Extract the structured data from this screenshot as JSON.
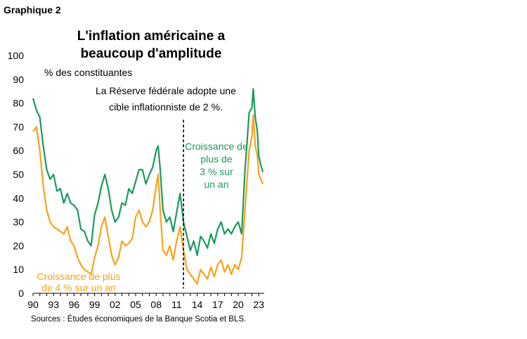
{
  "figure_label": "Graphique 2",
  "sources": "Sources : Études économiques de la Banque Scotia et  BLS.",
  "colors": {
    "green": "#1a9a5c",
    "orange": "#f7a21b",
    "text": "#000000"
  },
  "chart_data": {
    "type": "line",
    "title_lines": [
      "L'inflation américaine a",
      "beaucoup d'amplitude"
    ],
    "ylabel": "% des constituantes",
    "xlabel": "",
    "ylim": [
      0,
      100
    ],
    "xlim": [
      1990,
      2023.8
    ],
    "y_ticks": [
      "0",
      "10",
      "20",
      "30",
      "40",
      "50",
      "60",
      "70",
      "80",
      "90",
      "100"
    ],
    "x_ticks": [
      {
        "year": 1990,
        "label": "90"
      },
      {
        "year": 1993,
        "label": "93"
      },
      {
        "year": 1996,
        "label": "96"
      },
      {
        "year": 1999,
        "label": "99"
      },
      {
        "year": 2002,
        "label": "02"
      },
      {
        "year": 2005,
        "label": "05"
      },
      {
        "year": 2008,
        "label": "08"
      },
      {
        "year": 2011,
        "label": "11"
      },
      {
        "year": 2014,
        "label": "14"
      },
      {
        "year": 2017,
        "label": "17"
      },
      {
        "year": 2020,
        "label": "20"
      },
      {
        "year": 2023,
        "label": "23"
      }
    ],
    "event_line": {
      "x": 2012.0,
      "y_range": [
        2,
        73
      ],
      "annotation_lines": [
        "La Réserve fédérale adopte une",
        "cible inflationniste de 2 %."
      ]
    },
    "series": [
      {
        "label_lines": [
          "Croissance de",
          "plus de",
          "3 % sur",
          "un an"
        ],
        "color": "#1a9a5c",
        "x": [
          1990,
          1990.5,
          1991,
          1991.5,
          1992,
          1992.5,
          1993,
          1993.5,
          1994,
          1994.5,
          1995,
          1995.5,
          1996,
          1996.5,
          1997,
          1997.5,
          1998,
          1998.5,
          1999,
          1999.5,
          2000,
          2000.5,
          2001,
          2001.5,
          2002,
          2002.5,
          2003,
          2003.5,
          2004,
          2004.5,
          2005,
          2005.5,
          2006,
          2006.5,
          2007,
          2007.5,
          2008,
          2008.3,
          2008.6,
          2009,
          2009.5,
          2010,
          2010.5,
          2011,
          2011.5,
          2012,
          2012.5,
          2013,
          2013.5,
          2014,
          2014.5,
          2015,
          2015.5,
          2016,
          2016.5,
          2017,
          2017.5,
          2018,
          2018.5,
          2019,
          2019.5,
          2020,
          2020.5,
          2021,
          2021.3,
          2021.6,
          2022,
          2022.2,
          2022.5,
          2022.8,
          2023,
          2023.3,
          2023.6
        ],
        "values": [
          82,
          77,
          74,
          62,
          52,
          48,
          50,
          43,
          44,
          38,
          42,
          38,
          37,
          35,
          27,
          26,
          22,
          20,
          33,
          38,
          45,
          50,
          44,
          35,
          30,
          32,
          38,
          37,
          44,
          42,
          47,
          52,
          52,
          46,
          50,
          53,
          60,
          62,
          52,
          35,
          30,
          32,
          26,
          34,
          42,
          30,
          24,
          18,
          22,
          16,
          24,
          22,
          19,
          25,
          21,
          27,
          30,
          25,
          27,
          25,
          28,
          30,
          25,
          52,
          64,
          76,
          78,
          86,
          74,
          68,
          58,
          54,
          51
        ]
      },
      {
        "label_lines": [
          "Croissance de plus",
          "de 4 % sur un an"
        ],
        "color": "#f7a21b",
        "x": [
          1990,
          1990.5,
          1991,
          1991.5,
          1992,
          1992.5,
          1993,
          1993.5,
          1994,
          1994.5,
          1995,
          1995.5,
          1996,
          1996.5,
          1997,
          1997.5,
          1998,
          1998.5,
          1999,
          1999.5,
          2000,
          2000.5,
          2001,
          2001.5,
          2002,
          2002.5,
          2003,
          2003.5,
          2004,
          2004.5,
          2005,
          2005.5,
          2006,
          2006.5,
          2007,
          2007.5,
          2008,
          2008.3,
          2008.6,
          2009,
          2009.5,
          2010,
          2010.5,
          2011,
          2011.5,
          2012,
          2012.5,
          2013,
          2013.5,
          2014,
          2014.5,
          2015,
          2015.5,
          2016,
          2016.5,
          2017,
          2017.5,
          2018,
          2018.5,
          2019,
          2019.5,
          2020,
          2020.5,
          2021,
          2021.3,
          2021.6,
          2022,
          2022.2,
          2022.5,
          2022.8,
          2023,
          2023.3,
          2023.6
        ],
        "values": [
          68,
          70,
          60,
          45,
          35,
          30,
          28,
          27,
          26,
          25,
          28,
          22,
          20,
          15,
          12,
          10,
          9,
          8,
          15,
          20,
          28,
          32,
          24,
          16,
          12,
          15,
          22,
          20,
          21,
          23,
          32,
          35,
          30,
          28,
          30,
          35,
          45,
          50,
          35,
          18,
          16,
          20,
          14,
          22,
          28,
          18,
          10,
          8,
          6,
          4,
          10,
          8,
          6,
          11,
          7,
          12,
          14,
          9,
          12,
          8,
          12,
          10,
          15,
          35,
          48,
          60,
          66,
          75,
          62,
          58,
          50,
          48,
          46
        ]
      }
    ]
  }
}
